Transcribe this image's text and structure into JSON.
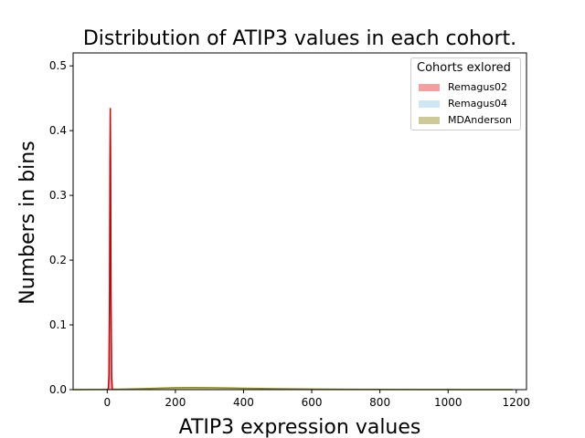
{
  "chart_data": {
    "type": "area",
    "title": "Distribution of ATIP3 values in each cohort.",
    "xlabel": "ATIP3 expression values",
    "ylabel": "Numbers in bins",
    "xlim": [
      -100,
      1230
    ],
    "ylim": [
      0,
      0.52
    ],
    "xticks": [
      0,
      200,
      400,
      600,
      800,
      1000,
      1200
    ],
    "yticks": [
      0.0,
      0.1,
      0.2,
      0.3,
      0.4,
      0.5
    ],
    "xtick_labels": [
      "0",
      "200",
      "400",
      "600",
      "800",
      "1000",
      "1200"
    ],
    "ytick_labels": [
      "0.0",
      "0.1",
      "0.2",
      "0.3",
      "0.4",
      "0.5"
    ],
    "grid": false,
    "legend": {
      "title": "Cohorts exlored",
      "placement": "top-right"
    },
    "series": [
      {
        "name": "Remagus02",
        "color": "#f08080",
        "line_color": "#d40000",
        "x": [
          3,
          5,
          7,
          8,
          9,
          10,
          11,
          13,
          15
        ],
        "y": [
          0.0,
          0.02,
          0.15,
          0.35,
          0.435,
          0.35,
          0.15,
          0.02,
          0.0
        ]
      },
      {
        "name": "Remagus04",
        "color": "#b0d8f0",
        "line_color": "#7ec3ea",
        "x": [
          3,
          5,
          7,
          8,
          9,
          10,
          11,
          13,
          15
        ],
        "y": [
          0.0,
          0.02,
          0.13,
          0.29,
          0.35,
          0.29,
          0.13,
          0.02,
          0.0
        ]
      },
      {
        "name": "MDAnderson",
        "color": "#a8a550",
        "line_color": "#8a8a1a",
        "x": [
          -100,
          0,
          100,
          200,
          250,
          300,
          400,
          500,
          600,
          700,
          800,
          900,
          1000,
          1100,
          1190
        ],
        "y": [
          0.0,
          0.0003,
          0.0015,
          0.003,
          0.0032,
          0.003,
          0.0022,
          0.0014,
          0.0008,
          0.0005,
          0.0003,
          0.00015,
          0.0001,
          5e-05,
          0.0
        ]
      }
    ]
  }
}
